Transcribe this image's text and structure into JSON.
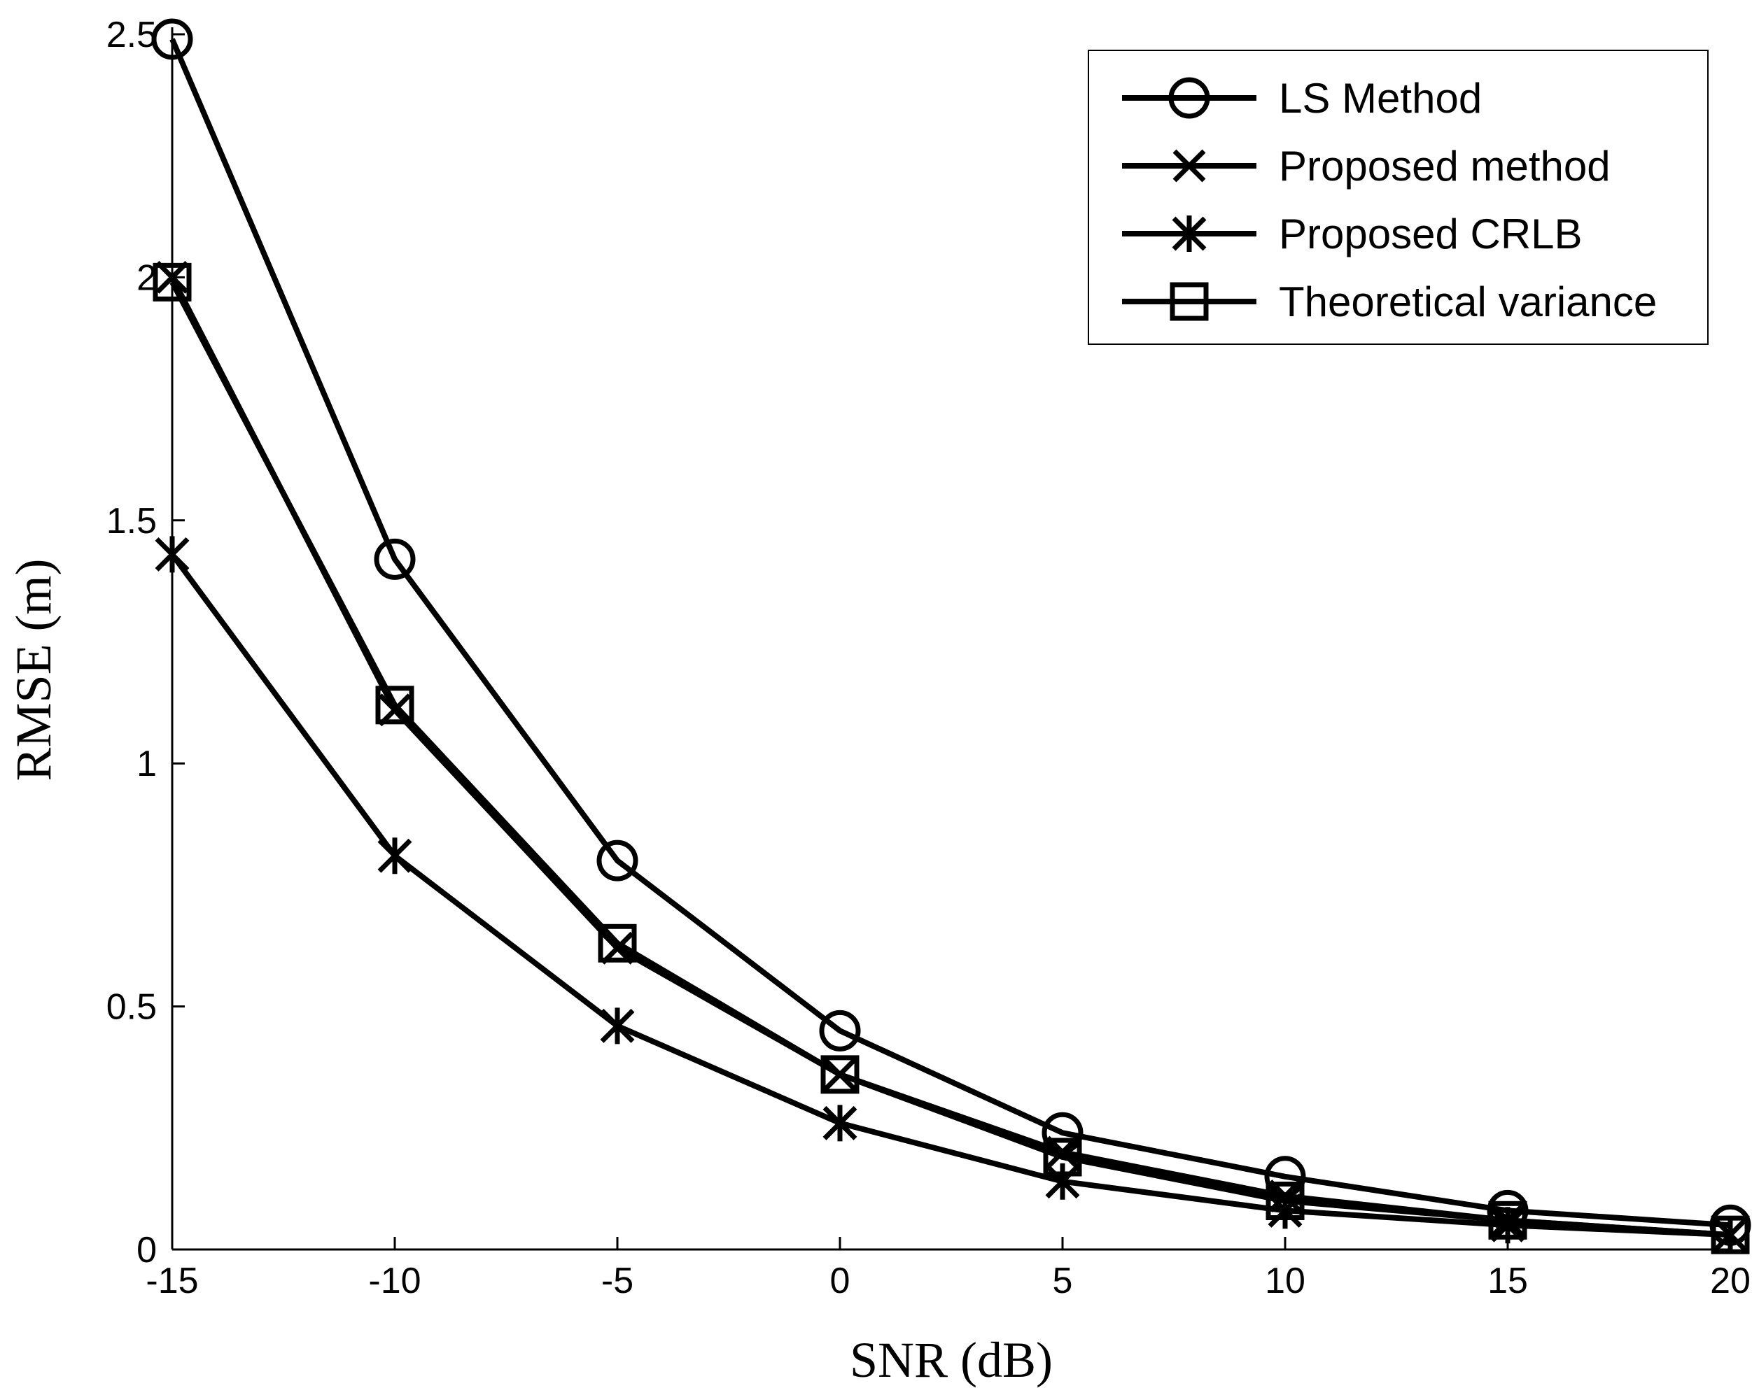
{
  "chart_data": {
    "type": "line",
    "title": "",
    "xlabel": "SNR (dB)",
    "ylabel": "RMSE (m)",
    "xlim": [
      -15,
      20
    ],
    "ylim": [
      0,
      2.5
    ],
    "x": [
      -15,
      -10,
      -5,
      0,
      5,
      10,
      15,
      20
    ],
    "x_ticks": [
      -15,
      -10,
      -5,
      0,
      5,
      10,
      15,
      20
    ],
    "y_ticks": [
      0,
      0.5,
      1,
      1.5,
      2,
      2.5
    ],
    "x_tick_labels": [
      "-15",
      "-10",
      "-5",
      "0",
      "5",
      "10",
      "15",
      "20"
    ],
    "y_tick_labels": [
      "0",
      "0.5",
      "1",
      "1.5",
      "2",
      "2.5"
    ],
    "grid": false,
    "legend_position": "top-right",
    "line_color": "#000000",
    "series": [
      {
        "name": "LS Method",
        "marker": "circle",
        "values": [
          2.49,
          1.42,
          0.8,
          0.45,
          0.24,
          0.15,
          0.08,
          0.05
        ]
      },
      {
        "name": "Proposed method",
        "marker": "x",
        "values": [
          2.0,
          1.11,
          0.62,
          0.36,
          0.2,
          0.11,
          0.06,
          0.03
        ]
      },
      {
        "name": "Proposed CRLB",
        "marker": "star",
        "values": [
          1.43,
          0.81,
          0.46,
          0.26,
          0.14,
          0.08,
          0.05,
          0.03
        ]
      },
      {
        "name": "Theoretical variance",
        "marker": "square",
        "values": [
          1.99,
          1.12,
          0.63,
          0.36,
          0.19,
          0.1,
          0.06,
          0.03
        ]
      }
    ]
  }
}
